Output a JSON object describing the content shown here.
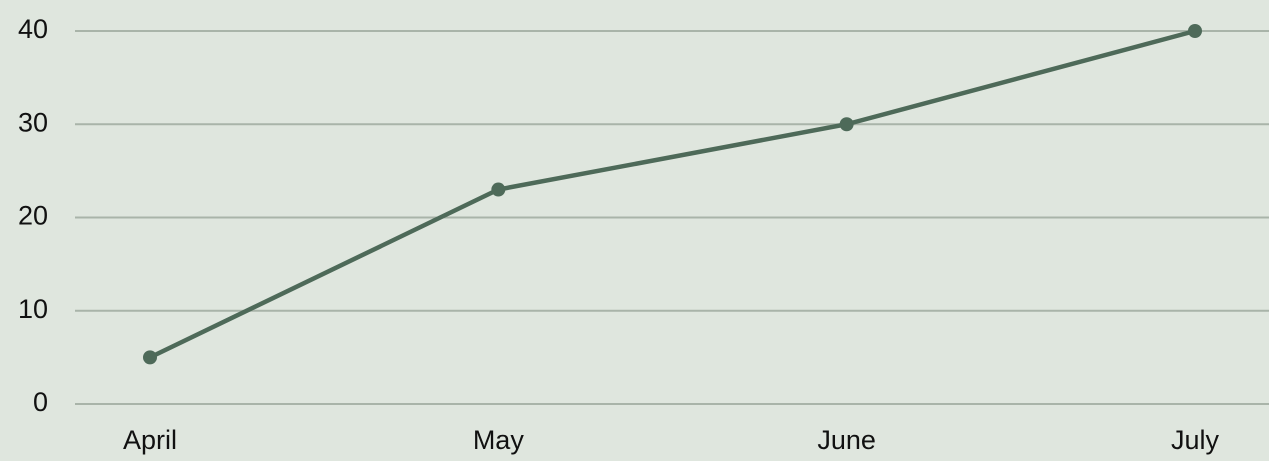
{
  "chart_data": {
    "type": "line",
    "categories": [
      "April",
      "May",
      "June",
      "July"
    ],
    "series": [
      {
        "color": "#4e6a59",
        "values": [
          5,
          23,
          30,
          40
        ]
      }
    ],
    "ylim": [
      0,
      40
    ],
    "yticks": [
      0,
      10,
      20,
      30,
      40
    ],
    "grid": true
  }
}
